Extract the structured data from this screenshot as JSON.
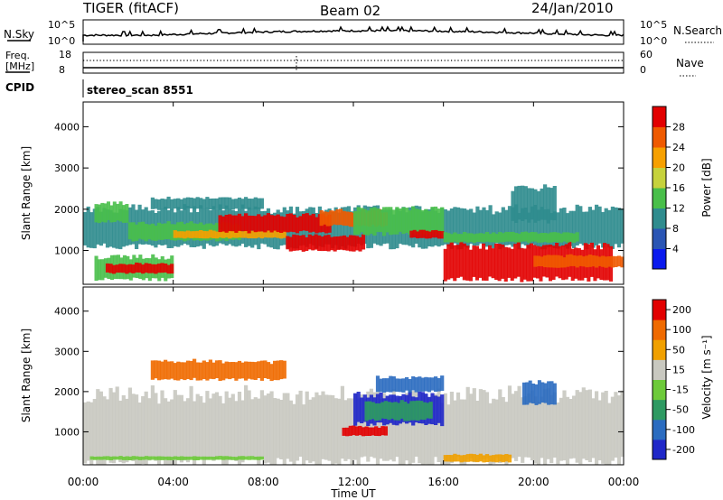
{
  "header": {
    "station": "TIGER (fitACF)",
    "beam": "Beam 02",
    "date": "24/Jan/2010"
  },
  "top_panel": {
    "left_label": "N.Sky",
    "right_label": "N.Search",
    "left_ticks": [
      "10^5",
      "10^0"
    ],
    "right_ticks": [
      "10^5",
      "10^0"
    ]
  },
  "freq_panel": {
    "left_label_1": "Freq.",
    "left_label_2": "[MHz]",
    "right_label": "Nave",
    "left_ticks": [
      "18",
      "8"
    ],
    "right_ticks": [
      "60",
      "0"
    ]
  },
  "cpid": {
    "label": "CPID",
    "value": "stereo_scan 8551"
  },
  "x_axis": {
    "label": "Time UT",
    "ticks": [
      "00:00",
      "04:00",
      "08:00",
      "12:00",
      "16:00",
      "20:00",
      "00:00"
    ]
  },
  "chart_data": [
    {
      "type": "heatmap",
      "quantity": "Power",
      "ylabel": "Slant Range [km]",
      "xlabel": "Time UT",
      "x_range_hours": [
        0,
        24
      ],
      "ylim": [
        180,
        4600
      ],
      "yticks": [
        1000,
        2000,
        3000,
        4000
      ],
      "colorbar_label": "Power [dB]",
      "colorbar_ticks": [
        "4",
        "8",
        "12",
        "16",
        "20",
        "24",
        "28"
      ],
      "colorbar_colors": [
        "#0a1aee",
        "#2a55b4",
        "#2f8c8e",
        "#49bf4a",
        "#c6d23c",
        "#f6a000",
        "#ef5a00",
        "#e20000"
      ]
    },
    {
      "type": "heatmap",
      "quantity": "Velocity",
      "ylabel": "Slant Range [km]",
      "xlabel": "Time UT",
      "x_range_hours": [
        0,
        24
      ],
      "ylim": [
        180,
        4600
      ],
      "yticks": [
        1000,
        2000,
        3000,
        4000
      ],
      "colorbar_label": "Velocity [m s⁻¹]",
      "colorbar_ticks": [
        "200",
        "100",
        "50",
        "15",
        "-15",
        "-50",
        "-100",
        "-200"
      ],
      "colorbar_colors": [
        "#1f27c8",
        "#2b6cc0",
        "#2e9a62",
        "#6dca3a",
        "#c8c8c0",
        "#f0a000",
        "#ef6a00",
        "#e20000"
      ]
    }
  ]
}
